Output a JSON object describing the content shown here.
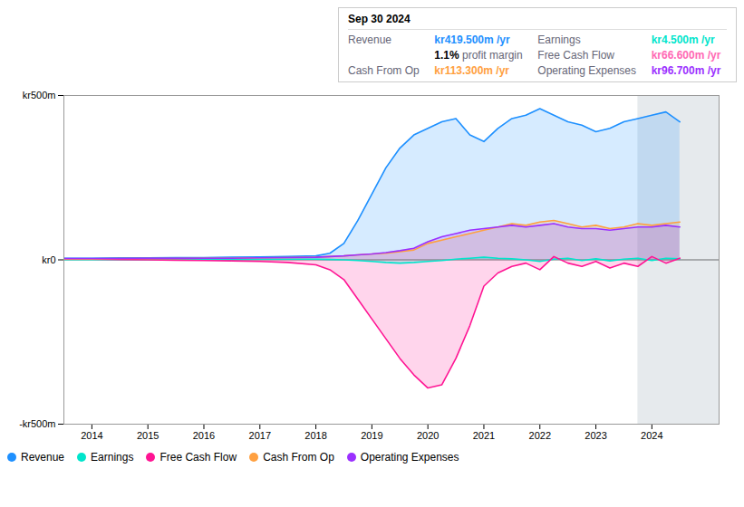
{
  "chart_data": {
    "type": "area",
    "x": [
      2013.5,
      2014.0,
      2014.5,
      2015.0,
      2015.5,
      2016.0,
      2016.5,
      2017.0,
      2017.5,
      2018.0,
      2018.25,
      2018.5,
      2018.75,
      2019.0,
      2019.25,
      2019.5,
      2019.75,
      2020.0,
      2020.25,
      2020.5,
      2020.75,
      2021.0,
      2021.25,
      2021.5,
      2021.75,
      2022.0,
      2022.25,
      2022.5,
      2022.75,
      2023.0,
      2023.25,
      2023.5,
      2023.75,
      2024.0,
      2024.25,
      2024.5
    ],
    "series": [
      {
        "name": "Revenue",
        "color": "#1e90ff",
        "values": [
          5,
          5,
          6,
          6,
          7,
          7,
          8,
          9,
          10,
          12,
          20,
          50,
          120,
          200,
          280,
          340,
          380,
          400,
          420,
          430,
          380,
          360,
          400,
          430,
          440,
          460,
          440,
          420,
          410,
          390,
          400,
          420,
          430,
          440,
          450,
          420
        ]
      },
      {
        "name": "Earnings",
        "color": "#00e5cc",
        "values": [
          1,
          1,
          1,
          1,
          2,
          1,
          1,
          2,
          2,
          2,
          1,
          0,
          -2,
          -5,
          -8,
          -10,
          -8,
          -5,
          -2,
          2,
          5,
          8,
          5,
          3,
          0,
          -5,
          2,
          5,
          -2,
          3,
          -3,
          2,
          5,
          -2,
          5,
          3
        ]
      },
      {
        "name": "Free Cash Flow",
        "color": "#ff1493",
        "values": [
          2,
          2,
          1,
          0,
          -1,
          -2,
          -3,
          -5,
          -8,
          -15,
          -30,
          -60,
          -120,
          -180,
          -240,
          -300,
          -350,
          -390,
          -380,
          -300,
          -200,
          -80,
          -40,
          -20,
          -10,
          -30,
          10,
          -10,
          -20,
          -5,
          -25,
          -10,
          -20,
          10,
          -10,
          5
        ]
      },
      {
        "name": "Cash From Op",
        "color": "#ffa040",
        "values": [
          3,
          3,
          4,
          4,
          4,
          5,
          5,
          6,
          7,
          8,
          10,
          12,
          15,
          18,
          20,
          25,
          30,
          50,
          60,
          70,
          80,
          90,
          100,
          110,
          105,
          115,
          120,
          110,
          100,
          105,
          95,
          100,
          110,
          105,
          110,
          115
        ]
      },
      {
        "name": "Operating Expenses",
        "color": "#9b30ff",
        "values": [
          4,
          4,
          4,
          5,
          5,
          5,
          5,
          6,
          7,
          8,
          10,
          12,
          15,
          18,
          22,
          28,
          35,
          55,
          70,
          80,
          90,
          95,
          100,
          105,
          100,
          105,
          110,
          100,
          95,
          95,
          90,
          95,
          100,
          100,
          105,
          100
        ]
      }
    ],
    "xlim": [
      2013.5,
      2025.2
    ],
    "xticks": [
      2014,
      2015,
      2016,
      2017,
      2018,
      2019,
      2020,
      2021,
      2022,
      2023,
      2024
    ],
    "ylim": [
      -500,
      500
    ],
    "yticks": [
      {
        "value": -500,
        "label": "-kr500m"
      },
      {
        "value": 0,
        "label": "kr0"
      },
      {
        "value": 500,
        "label": "kr500m"
      }
    ],
    "grid": "y",
    "legend": "lower left",
    "shade_start": 2023.75,
    "annotations": [
      {
        "text": "Sep 30 2024"
      },
      {
        "label": "Revenue",
        "text": "kr419.500m /yr",
        "color": "#1e90ff"
      },
      {
        "label": "Earnings",
        "text": "kr4.500m /yr",
        "color": "#00e5cc"
      },
      {
        "text": "1.1% profit margin",
        "bold": "1.1%"
      },
      {
        "label": "Free Cash Flow",
        "text": "kr66.600m /yr",
        "color": "#ff69b4"
      },
      {
        "label": "Cash From Op",
        "text": "kr113.300m /yr",
        "color": "#ffa040"
      },
      {
        "label": "Operating Expenses",
        "text": "kr96.700m /yr",
        "color": "#9b30ff"
      }
    ]
  }
}
